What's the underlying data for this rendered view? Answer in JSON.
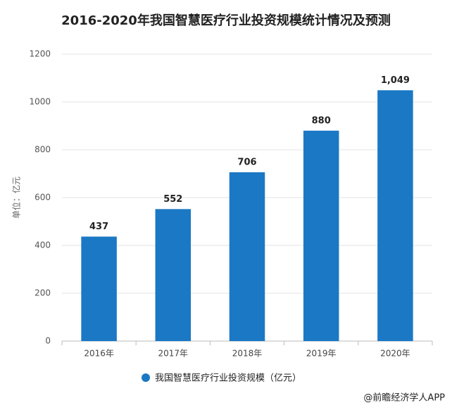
{
  "chart_data": {
    "type": "bar",
    "title": "2016-2020年我国智慧医疗行业投资规模统计情况及预测",
    "y_label": "单位：亿元",
    "categories": [
      "2016年",
      "2017年",
      "2018年",
      "2019年",
      "2020年"
    ],
    "series": [
      {
        "name": "我国智慧医疗行业投资规模（亿元）",
        "color": "#1b78c4",
        "values": [
          437,
          552,
          706,
          880,
          1049
        ],
        "value_labels": [
          "437",
          "552",
          "706",
          "880",
          "1,049"
        ]
      }
    ],
    "ylim": [
      0,
      1200
    ],
    "yticks": [
      0,
      200,
      400,
      600,
      800,
      1000,
      1200
    ],
    "grid": true,
    "legend": "bottom",
    "source": "@前瞻经济学人APP"
  }
}
